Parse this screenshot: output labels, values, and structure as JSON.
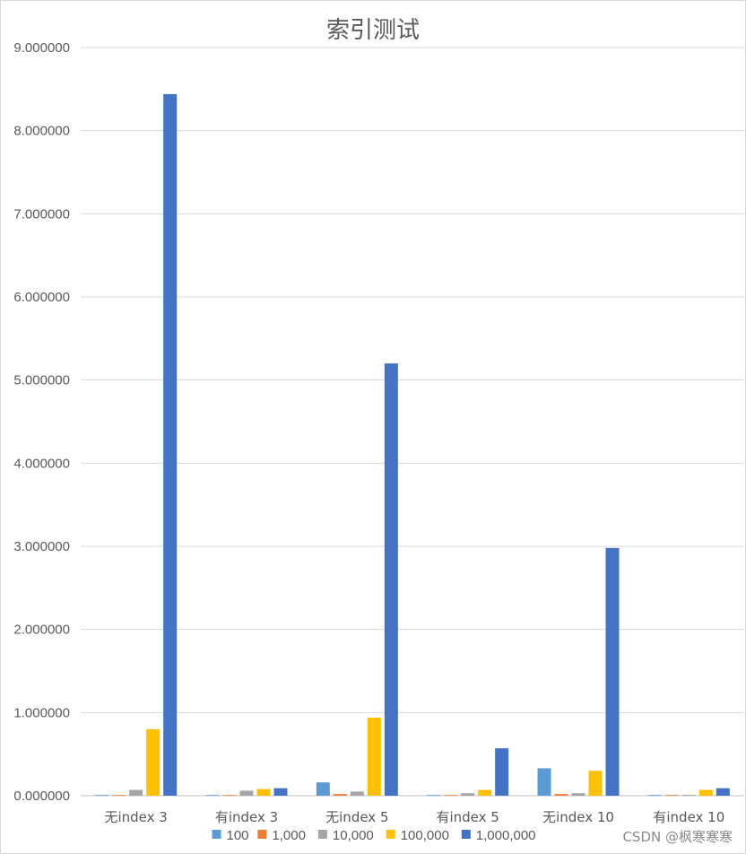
{
  "chart_data": {
    "type": "bar",
    "title": "索引测试",
    "categories": [
      "无index 3",
      "有index 3",
      "无index 5",
      "有index 5",
      "无index 10",
      "有index 10"
    ],
    "ylim": [
      0,
      9
    ],
    "yticks": [
      "0.000000",
      "1.000000",
      "2.000000",
      "3.000000",
      "4.000000",
      "5.000000",
      "6.000000",
      "7.000000",
      "8.000000",
      "9.000000"
    ],
    "grid": true,
    "legend_position": "bottom",
    "series": [
      {
        "name": "100",
        "color": "#5B9BD5",
        "values": [
          0.005,
          0.003,
          0.16,
          0.002,
          0.33,
          0.004
        ]
      },
      {
        "name": "1,000",
        "color": "#ED7D31",
        "values": [
          0.006,
          0.004,
          0.02,
          0.004,
          0.02,
          0.003
        ]
      },
      {
        "name": "10,000",
        "color": "#A5A5A5",
        "values": [
          0.07,
          0.06,
          0.05,
          0.03,
          0.03,
          0.01
        ]
      },
      {
        "name": "100,000",
        "color": "#FFC000",
        "values": [
          0.8,
          0.08,
          0.94,
          0.07,
          0.3,
          0.07
        ]
      },
      {
        "name": "1,000,000",
        "color": "#4472C4",
        "values": [
          8.44,
          0.09,
          5.2,
          0.57,
          2.98,
          0.09
        ]
      }
    ]
  },
  "watermark": "CSDN @枫寒寒寒"
}
